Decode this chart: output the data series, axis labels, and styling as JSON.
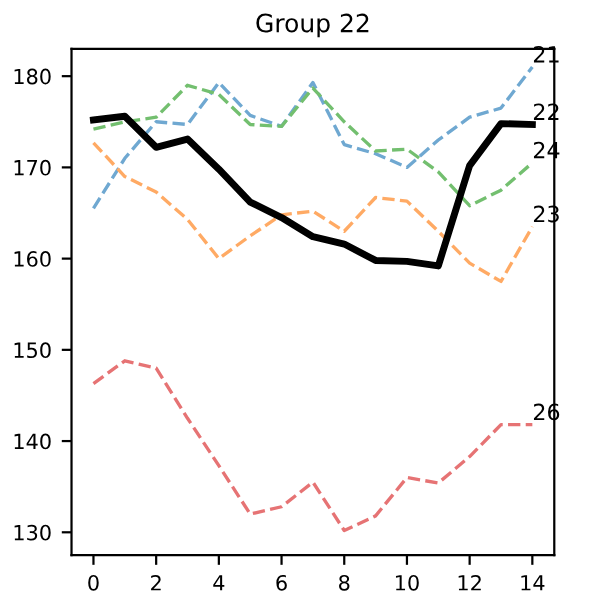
{
  "chart_data": {
    "type": "line",
    "title": "Group 22",
    "x": [
      0,
      1,
      2,
      3,
      4,
      5,
      6,
      7,
      8,
      9,
      10,
      11,
      12,
      13,
      14
    ],
    "xlim": [
      -0.7,
      14.7
    ],
    "xticks": [
      0,
      2,
      4,
      6,
      8,
      10,
      12,
      14
    ],
    "ylim": [
      127.5,
      183
    ],
    "yticks": [
      130,
      140,
      150,
      160,
      170,
      180
    ],
    "grid": false,
    "legend": false,
    "series": [
      {
        "name": "21",
        "color": "#6fa8d1",
        "line_style": "dashed",
        "values": [
          165.5,
          171,
          175,
          174.7,
          179.3,
          175.7,
          174.5,
          179.3,
          172.5,
          171.5,
          170,
          173,
          175.5,
          176.5,
          181
        ]
      },
      {
        "name": "23",
        "color": "#ffaa64",
        "line_style": "dashed",
        "values": [
          172.7,
          169,
          167.3,
          164.3,
          160,
          162.5,
          164.8,
          165.2,
          163,
          166.7,
          166.3,
          163,
          159.5,
          157.5,
          163.5
        ]
      },
      {
        "name": "24",
        "color": "#73bf6f",
        "line_style": "dashed",
        "values": [
          174.2,
          175,
          175.5,
          179,
          178,
          174.7,
          174.5,
          178.7,
          175,
          171.8,
          172,
          169.5,
          165.8,
          167.5,
          170.5
        ]
      },
      {
        "name": "26",
        "color": "#e67374",
        "line_style": "dashed",
        "values": [
          146.3,
          148.8,
          148,
          142.5,
          137.3,
          132,
          132.8,
          135.5,
          130.2,
          131.8,
          136,
          135.4,
          138.3,
          141.8,
          141.8
        ]
      },
      {
        "name": "22",
        "color": "#000000",
        "line_style": "solid",
        "values": [
          175.2,
          175.6,
          172.2,
          173.1,
          169.8,
          166.2,
          164.5,
          162.4,
          161.6,
          159.8,
          159.7,
          159.2,
          170.2,
          174.8,
          174.7
        ]
      }
    ]
  }
}
